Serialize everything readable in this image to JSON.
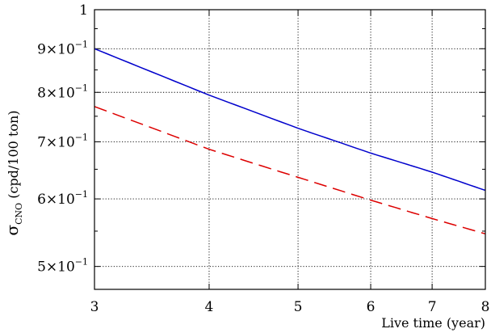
{
  "chart_data": {
    "type": "line",
    "xlabel": "Live time (year)",
    "ylabel_symbol": "σ",
    "ylabel_subscript": "CNO",
    "ylabel_rest": " (cpd/100 ton)",
    "x_scale": "log",
    "y_scale": "log",
    "xlim": [
      3,
      8
    ],
    "ylim": [
      0.47,
      1.0
    ],
    "grid": true,
    "legend": "none",
    "x_ticks": [
      {
        "value": 3,
        "label": "3"
      },
      {
        "value": 4,
        "label": "4"
      },
      {
        "value": 5,
        "label": "5"
      },
      {
        "value": 6,
        "label": "6"
      },
      {
        "value": 7,
        "label": "7"
      },
      {
        "value": 8,
        "label": "8"
      }
    ],
    "y_ticks": [
      {
        "value": 0.5,
        "mant": "5×10",
        "exp": "−1"
      },
      {
        "value": 0.6,
        "mant": "6×10",
        "exp": "−1"
      },
      {
        "value": 0.7,
        "mant": "7×10",
        "exp": "−1"
      },
      {
        "value": 0.8,
        "mant": "8×10",
        "exp": "−1"
      },
      {
        "value": 0.9,
        "mant": "9×10",
        "exp": "−1"
      },
      {
        "value": 1.0,
        "mant": "1",
        "exp": ""
      }
    ],
    "series": [
      {
        "color": "#0000cc",
        "dash": "solid",
        "x": [
          3,
          4,
          5,
          6,
          7,
          8
        ],
        "y": [
          0.9,
          0.794,
          0.726,
          0.679,
          0.645,
          0.614
        ]
      },
      {
        "color": "#dd0000",
        "dash": "dashed",
        "x": [
          3,
          4,
          5,
          6,
          7,
          8
        ],
        "y": [
          0.77,
          0.686,
          0.636,
          0.598,
          0.569,
          0.546
        ]
      }
    ]
  }
}
